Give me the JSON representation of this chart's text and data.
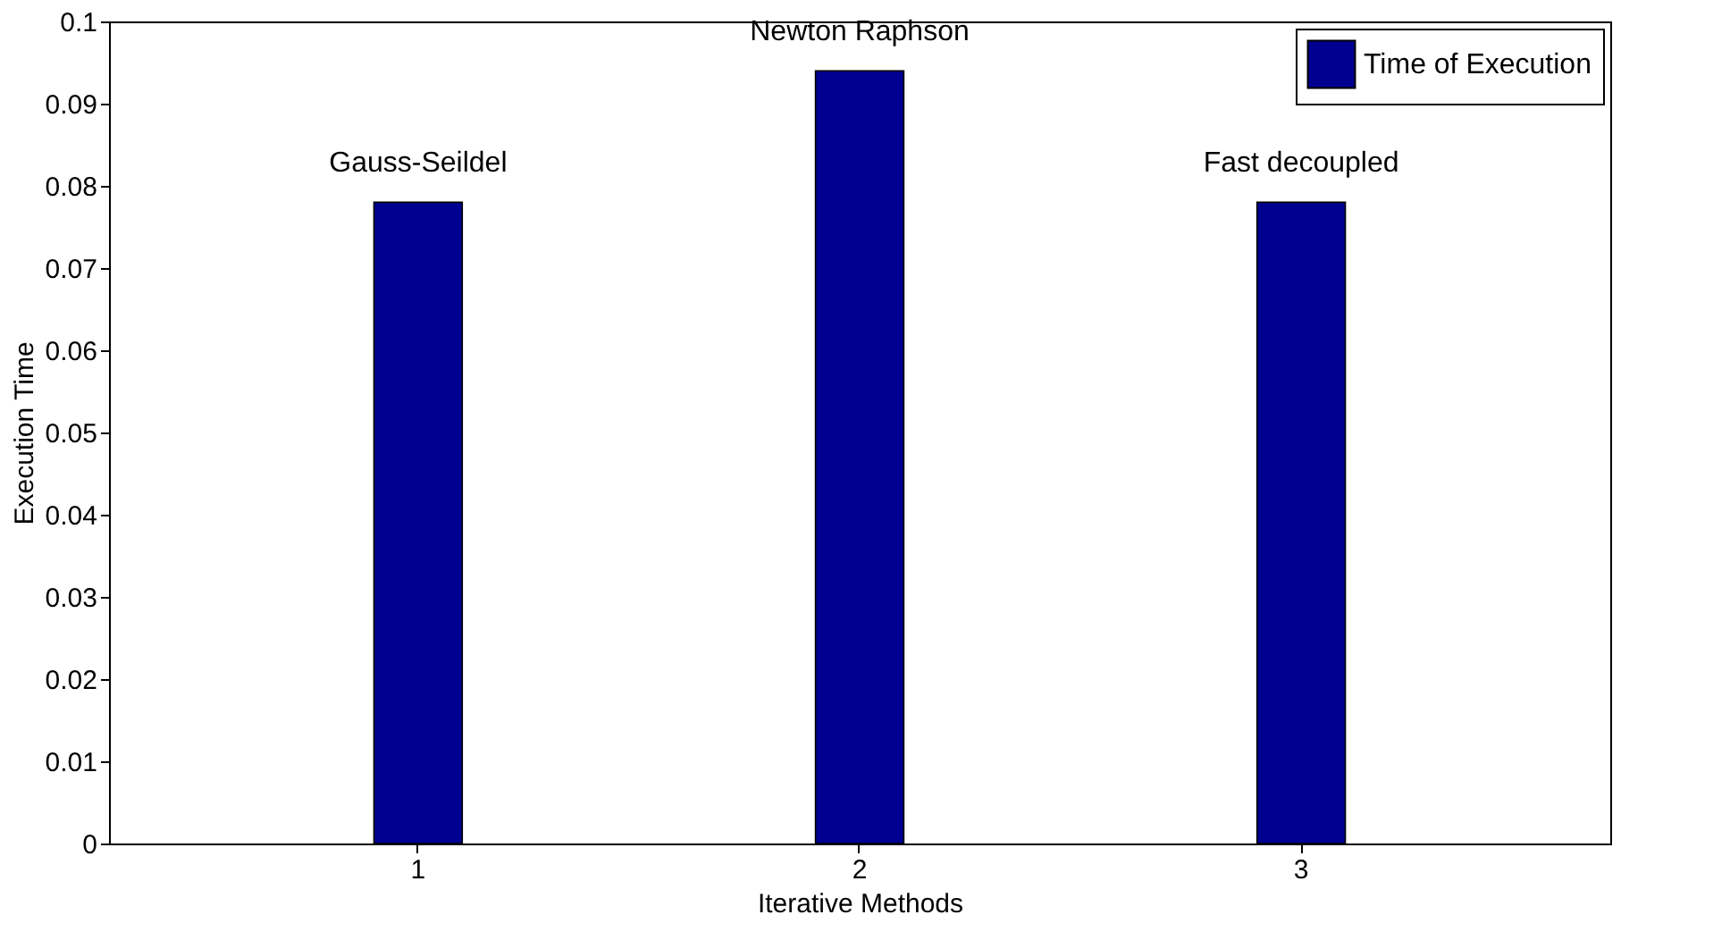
{
  "chart_data": {
    "type": "bar",
    "xlabel": "Iterative Methods",
    "ylabel": "Execution Time",
    "categories": [
      "1",
      "2",
      "3"
    ],
    "series": [
      {
        "name": "Time of Execution",
        "color": "#000090",
        "values": [
          0.078,
          0.094,
          0.078
        ]
      }
    ],
    "ylim": [
      0,
      0.1
    ],
    "yticks": [
      0,
      0.01,
      0.02,
      0.03,
      0.04,
      0.05,
      0.06,
      0.07,
      0.08,
      0.09,
      0.1
    ],
    "annotations": [
      "Gauss-Seildel",
      "Newton Raphson",
      "Fast decoupled"
    ],
    "legend": "top right",
    "grid": false
  }
}
